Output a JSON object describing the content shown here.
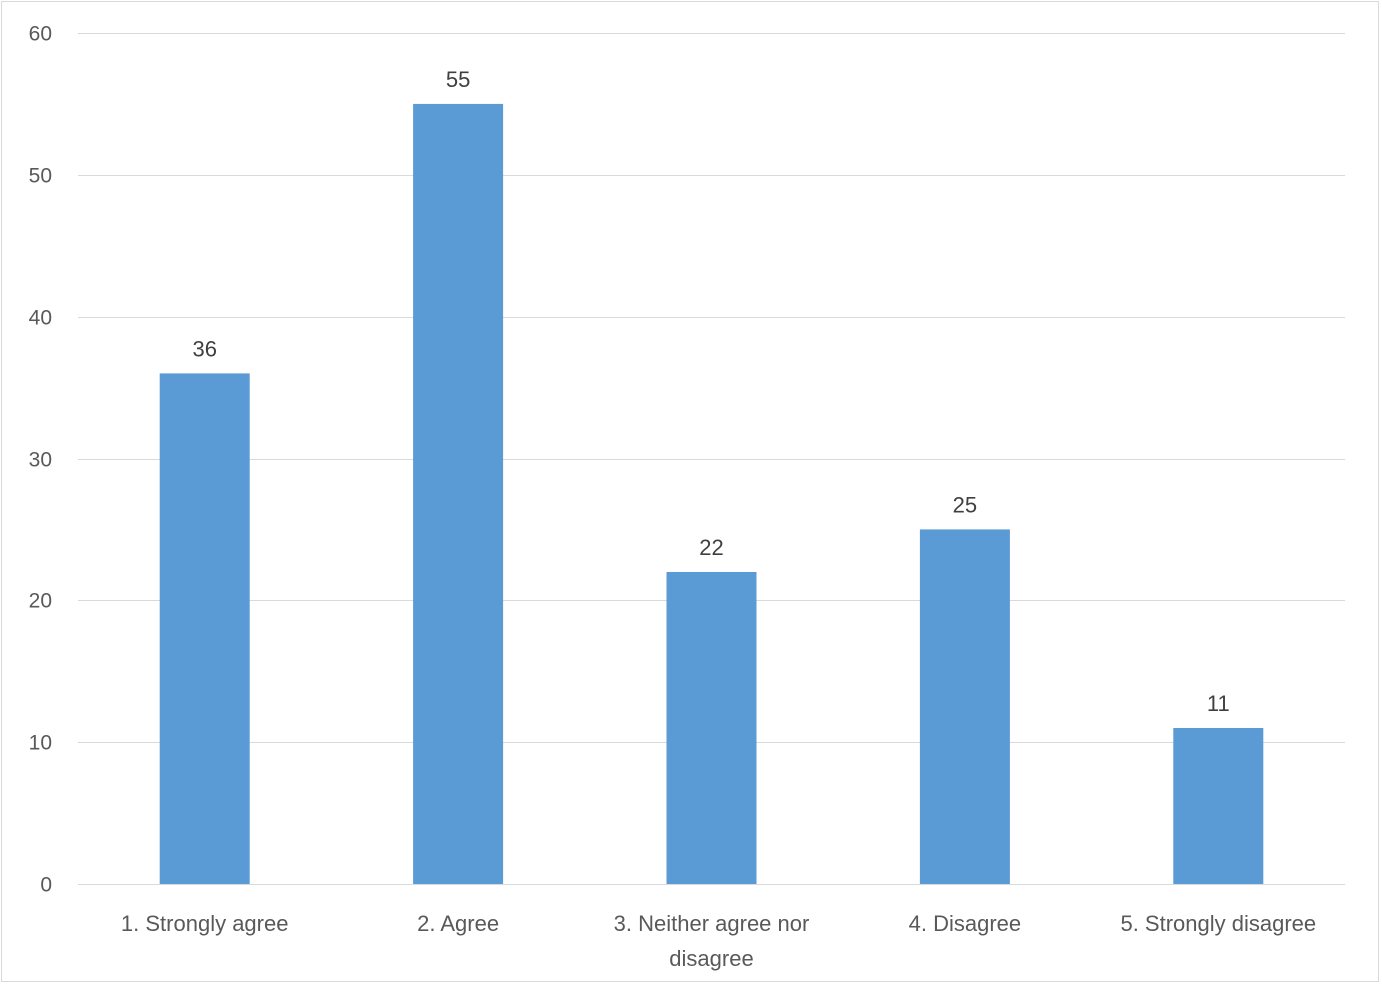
{
  "chart_data": {
    "type": "bar",
    "categories": [
      [
        "1. Strongly agree"
      ],
      [
        "2. Agree"
      ],
      [
        "3. Neither agree nor",
        "disagree"
      ],
      [
        "4. Disagree"
      ],
      [
        "5. Strongly disagree"
      ]
    ],
    "values": [
      36,
      55,
      22,
      25,
      11
    ],
    "ylim": [
      0,
      60
    ],
    "yticks": [
      0,
      10,
      20,
      30,
      40,
      50,
      60
    ],
    "grid": true,
    "legend": "none",
    "data_labels": true,
    "title": "",
    "xlabel": "",
    "ylabel": "",
    "colors": {
      "bar": "#5b9bd5",
      "grid": "#d9d9d9",
      "axis": "#d9d9d9",
      "label_text": "#595959",
      "value_text": "#404040"
    }
  }
}
